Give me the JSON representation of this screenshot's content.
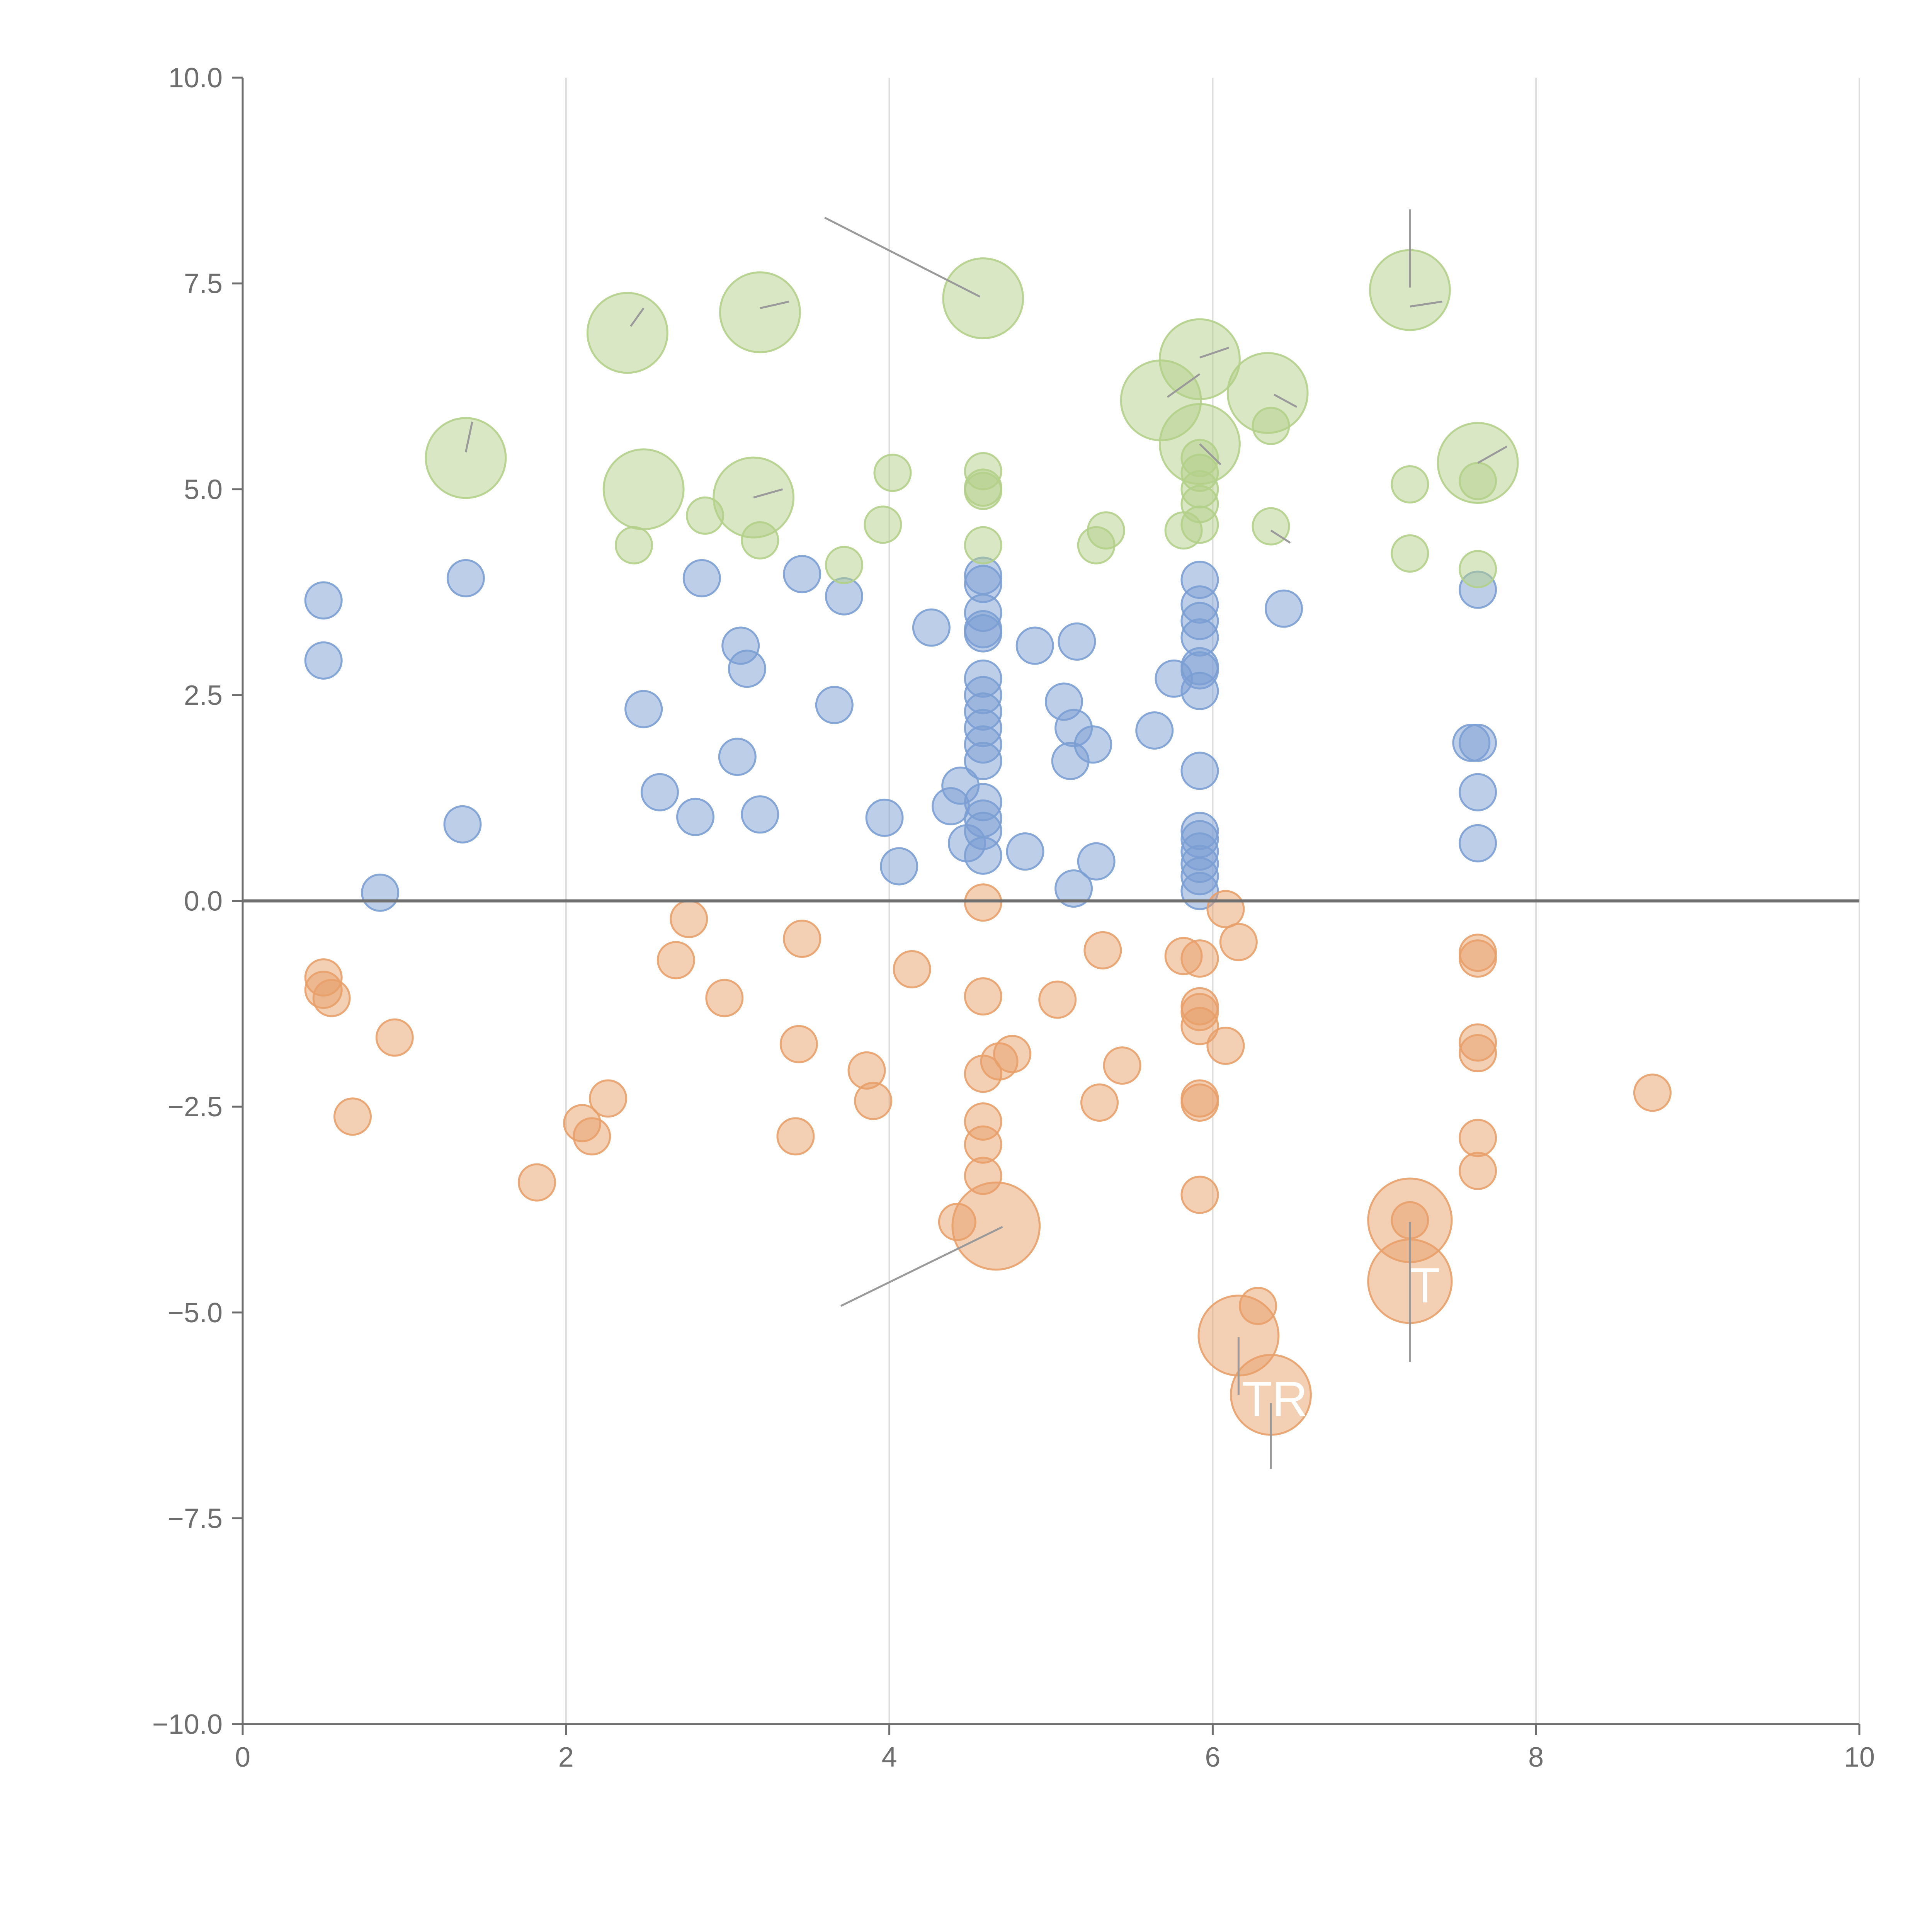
{
  "chart_data": {
    "type": "scatter",
    "title": "",
    "xlabel": "",
    "ylabel": "",
    "xlim": [
      0,
      10
    ],
    "ylim": [
      -10,
      10
    ],
    "xticks": [
      0,
      2,
      4,
      6,
      8,
      10
    ],
    "yticks": [
      -10,
      -7.5,
      -5,
      -2.5,
      0,
      2.5,
      5,
      7.5,
      10
    ],
    "x_tick_labels": [
      "0",
      "2",
      "4",
      "6",
      "8",
      "10"
    ],
    "y_tick_labels": [
      "−10.0",
      "−7.5",
      "−5.0",
      "−2.5",
      "0.0",
      "2.5",
      "5.0",
      "7.5",
      "10.0"
    ],
    "grid": "vertical",
    "zero_line": 0,
    "bubble_size_scale": "point size ~ relative radius",
    "colors": {
      "blue": "#7b9ed3",
      "orange": "#e8a06a",
      "green": "#b3d08a",
      "axis": "#6e6e6e",
      "grid": "#dddddd",
      "zero_line": "#707070",
      "leader_line": "#9a9a9a"
    },
    "series": [
      {
        "name": "blue",
        "color": "#7b9ed3",
        "points": [
          [
            0.5,
            3.65,
            1
          ],
          [
            0.5,
            2.92,
            1
          ],
          [
            0.85,
            0.1,
            1
          ],
          [
            1.38,
            3.92,
            1
          ],
          [
            1.36,
            0.93,
            1
          ],
          [
            2.48,
            2.33,
            1
          ],
          [
            2.58,
            1.32,
            1
          ],
          [
            2.8,
            1.02,
            1
          ],
          [
            2.84,
            3.92,
            1
          ],
          [
            3.08,
            3.1,
            1
          ],
          [
            3.06,
            1.75,
            1
          ],
          [
            3.12,
            2.82,
            1
          ],
          [
            3.2,
            1.05,
            1
          ],
          [
            3.46,
            3.97,
            1
          ],
          [
            3.66,
            2.38,
            1
          ],
          [
            3.72,
            3.7,
            1
          ],
          [
            3.97,
            1.01,
            1
          ],
          [
            4.06,
            0.42,
            1
          ],
          [
            4.26,
            3.32,
            1
          ],
          [
            4.38,
            1.15,
            1
          ],
          [
            4.44,
            1.4,
            1
          ],
          [
            4.48,
            0.7,
            1
          ],
          [
            4.58,
            3.95,
            1
          ],
          [
            4.58,
            3.85,
            1
          ],
          [
            4.58,
            3.5,
            1
          ],
          [
            4.58,
            3.3,
            1
          ],
          [
            4.58,
            3.25,
            1
          ],
          [
            4.58,
            2.7,
            1
          ],
          [
            4.58,
            2.5,
            1
          ],
          [
            4.58,
            2.3,
            1
          ],
          [
            4.58,
            2.1,
            1
          ],
          [
            4.58,
            1.9,
            1
          ],
          [
            4.58,
            1.7,
            1
          ],
          [
            4.58,
            1.2,
            1
          ],
          [
            4.58,
            1.0,
            1
          ],
          [
            4.58,
            0.85,
            1
          ],
          [
            4.58,
            0.55,
            1
          ],
          [
            4.84,
            0.6,
            1
          ],
          [
            4.9,
            3.1,
            1
          ],
          [
            5.08,
            2.42,
            1
          ],
          [
            5.12,
            1.7,
            1
          ],
          [
            5.14,
            2.1,
            1
          ],
          [
            5.14,
            0.15,
            1
          ],
          [
            5.16,
            3.15,
            1
          ],
          [
            5.26,
            1.9,
            1
          ],
          [
            5.28,
            0.48,
            1
          ],
          [
            5.64,
            2.07,
            1
          ],
          [
            5.76,
            2.7,
            1
          ],
          [
            5.92,
            3.9,
            1
          ],
          [
            5.92,
            3.6,
            1
          ],
          [
            5.92,
            3.4,
            1
          ],
          [
            5.92,
            3.2,
            1
          ],
          [
            5.92,
            2.85,
            1
          ],
          [
            5.92,
            2.8,
            1
          ],
          [
            5.92,
            2.55,
            1
          ],
          [
            5.92,
            1.58,
            1
          ],
          [
            5.92,
            0.85,
            1
          ],
          [
            5.92,
            0.75,
            1
          ],
          [
            5.92,
            0.6,
            1
          ],
          [
            5.92,
            0.45,
            1
          ],
          [
            5.92,
            0.3,
            1
          ],
          [
            5.92,
            0.12,
            1
          ],
          [
            6.44,
            3.55,
            1
          ],
          [
            7.6,
            1.92,
            1
          ],
          [
            7.64,
            1.92,
            1
          ],
          [
            7.64,
            1.32,
            1
          ],
          [
            7.64,
            0.7,
            1
          ],
          [
            7.64,
            3.78,
            1
          ]
        ]
      },
      {
        "name": "orange",
        "color": "#e8a06a",
        "points": [
          [
            0.5,
            -0.93,
            1
          ],
          [
            0.5,
            -1.08,
            1
          ],
          [
            0.55,
            -1.18,
            1
          ],
          [
            0.68,
            -2.62,
            1
          ],
          [
            0.94,
            -1.66,
            1
          ],
          [
            1.82,
            -3.42,
            1
          ],
          [
            2.1,
            -2.7,
            1
          ],
          [
            2.16,
            -2.86,
            1
          ],
          [
            2.26,
            -2.4,
            1
          ],
          [
            2.68,
            -0.72,
            1
          ],
          [
            2.76,
            -0.22,
            1
          ],
          [
            2.98,
            -1.18,
            1
          ],
          [
            3.42,
            -2.86,
            1
          ],
          [
            3.44,
            -1.74,
            1
          ],
          [
            3.46,
            -0.46,
            1
          ],
          [
            3.86,
            -2.06,
            1
          ],
          [
            3.9,
            -2.43,
            1
          ],
          [
            4.14,
            -0.83,
            1
          ],
          [
            4.42,
            -3.9,
            1
          ],
          [
            4.58,
            -0.02,
            1
          ],
          [
            4.58,
            -1.16,
            1
          ],
          [
            4.58,
            -2.1,
            1
          ],
          [
            4.58,
            -2.68,
            1
          ],
          [
            4.58,
            -2.96,
            1
          ],
          [
            4.58,
            -3.34,
            1
          ],
          [
            4.68,
            -1.95,
            1
          ],
          [
            4.76,
            -1.86,
            1
          ],
          [
            4.66,
            -3.95,
            2.4
          ],
          [
            5.04,
            -1.2,
            1
          ],
          [
            5.3,
            -2.45,
            1
          ],
          [
            5.32,
            -0.6,
            1
          ],
          [
            5.44,
            -2.0,
            1
          ],
          [
            5.82,
            -0.67,
            1
          ],
          [
            5.92,
            -0.7,
            1
          ],
          [
            5.92,
            -1.28,
            1
          ],
          [
            5.92,
            -1.35,
            1
          ],
          [
            5.92,
            -1.52,
            1
          ],
          [
            5.92,
            -2.4,
            1
          ],
          [
            5.92,
            -2.45,
            1
          ],
          [
            5.92,
            -3.57,
            1
          ],
          [
            6.08,
            -0.1,
            1
          ],
          [
            6.08,
            -1.76,
            1
          ],
          [
            6.16,
            -0.5,
            1
          ],
          [
            6.16,
            -5.28,
            2.2
          ],
          [
            6.28,
            -4.92,
            1
          ],
          [
            6.36,
            -6.0,
            2.2
          ],
          [
            7.22,
            -3.88,
            2.3
          ],
          [
            7.22,
            -3.88,
            1
          ],
          [
            7.22,
            -4.62,
            2.3
          ],
          [
            7.64,
            -0.63,
            1
          ],
          [
            7.64,
            -0.7,
            1
          ],
          [
            7.64,
            -1.72,
            1
          ],
          [
            7.64,
            -1.85,
            1
          ],
          [
            7.64,
            -2.88,
            1
          ],
          [
            7.64,
            -3.28,
            1
          ],
          [
            8.72,
            -2.33,
            1
          ]
        ]
      },
      {
        "name": "green",
        "color": "#b3d08a",
        "points": [
          [
            1.38,
            5.38,
            2.2
          ],
          [
            2.38,
            6.9,
            2.2
          ],
          [
            2.42,
            4.32,
            1
          ],
          [
            2.48,
            5.0,
            2.2
          ],
          [
            2.86,
            4.68,
            1
          ],
          [
            3.16,
            4.9,
            2.2
          ],
          [
            3.2,
            4.38,
            1
          ],
          [
            3.2,
            7.15,
            2.2
          ],
          [
            3.72,
            4.08,
            1
          ],
          [
            3.96,
            4.57,
            1
          ],
          [
            4.02,
            5.2,
            1
          ],
          [
            4.58,
            5.22,
            1
          ],
          [
            4.58,
            5.02,
            1
          ],
          [
            4.58,
            4.98,
            1
          ],
          [
            4.58,
            4.32,
            1
          ],
          [
            4.58,
            7.32,
            2.2
          ],
          [
            5.28,
            4.32,
            1
          ],
          [
            5.34,
            4.5,
            1
          ],
          [
            5.68,
            6.08,
            2.2
          ],
          [
            5.82,
            4.5,
            1
          ],
          [
            5.92,
            6.58,
            2.2
          ],
          [
            5.92,
            5.55,
            2.2
          ],
          [
            5.92,
            5.38,
            1
          ],
          [
            5.92,
            5.2,
            1
          ],
          [
            5.92,
            5.0,
            1
          ],
          [
            5.92,
            4.82,
            1
          ],
          [
            5.92,
            4.57,
            1
          ],
          [
            6.34,
            6.17,
            2.2
          ],
          [
            6.36,
            5.77,
            1
          ],
          [
            6.36,
            4.55,
            1
          ],
          [
            7.22,
            7.42,
            2.2
          ],
          [
            7.22,
            5.06,
            1
          ],
          [
            7.22,
            4.22,
            1
          ],
          [
            7.64,
            5.32,
            2.2
          ],
          [
            7.64,
            5.1,
            1
          ],
          [
            7.64,
            4.03,
            1
          ]
        ]
      }
    ],
    "leader_lines": [
      [
        [
          3.6,
          8.3
        ],
        [
          4.56,
          7.34
        ]
      ],
      [
        [
          7.22,
          8.4
        ],
        [
          7.22,
          7.45
        ]
      ],
      [
        [
          2.4,
          6.98
        ],
        [
          2.48,
          7.2
        ]
      ],
      [
        [
          3.2,
          7.2
        ],
        [
          3.38,
          7.28
        ]
      ],
      [
        [
          1.38,
          5.45
        ],
        [
          1.42,
          5.82
        ]
      ],
      [
        [
          3.16,
          4.9
        ],
        [
          3.34,
          5.0
        ]
      ],
      [
        [
          5.72,
          6.12
        ],
        [
          5.92,
          6.4
        ]
      ],
      [
        [
          5.92,
          6.6
        ],
        [
          6.1,
          6.72
        ]
      ],
      [
        [
          6.38,
          6.15
        ],
        [
          6.52,
          6.0
        ]
      ],
      [
        [
          7.22,
          7.22
        ],
        [
          7.42,
          7.28
        ]
      ],
      [
        [
          7.64,
          5.32
        ],
        [
          7.82,
          5.52
        ]
      ],
      [
        [
          6.36,
          4.5
        ],
        [
          6.48,
          4.35
        ]
      ],
      [
        [
          5.92,
          5.55
        ],
        [
          6.05,
          5.3
        ]
      ],
      [
        [
          4.7,
          -3.96
        ],
        [
          3.7,
          -4.92
        ]
      ],
      [
        [
          7.22,
          -3.9
        ],
        [
          7.22,
          -5.6
        ]
      ],
      [
        [
          6.16,
          -5.3
        ],
        [
          6.16,
          -6.0
        ]
      ],
      [
        [
          6.36,
          -6.1
        ],
        [
          6.36,
          -6.9
        ]
      ]
    ],
    "annotations": [
      {
        "text": "TR",
        "x": 6.18,
        "y": -6.05
      },
      {
        "text": "T",
        "x": 7.22,
        "y": -4.67
      }
    ]
  }
}
